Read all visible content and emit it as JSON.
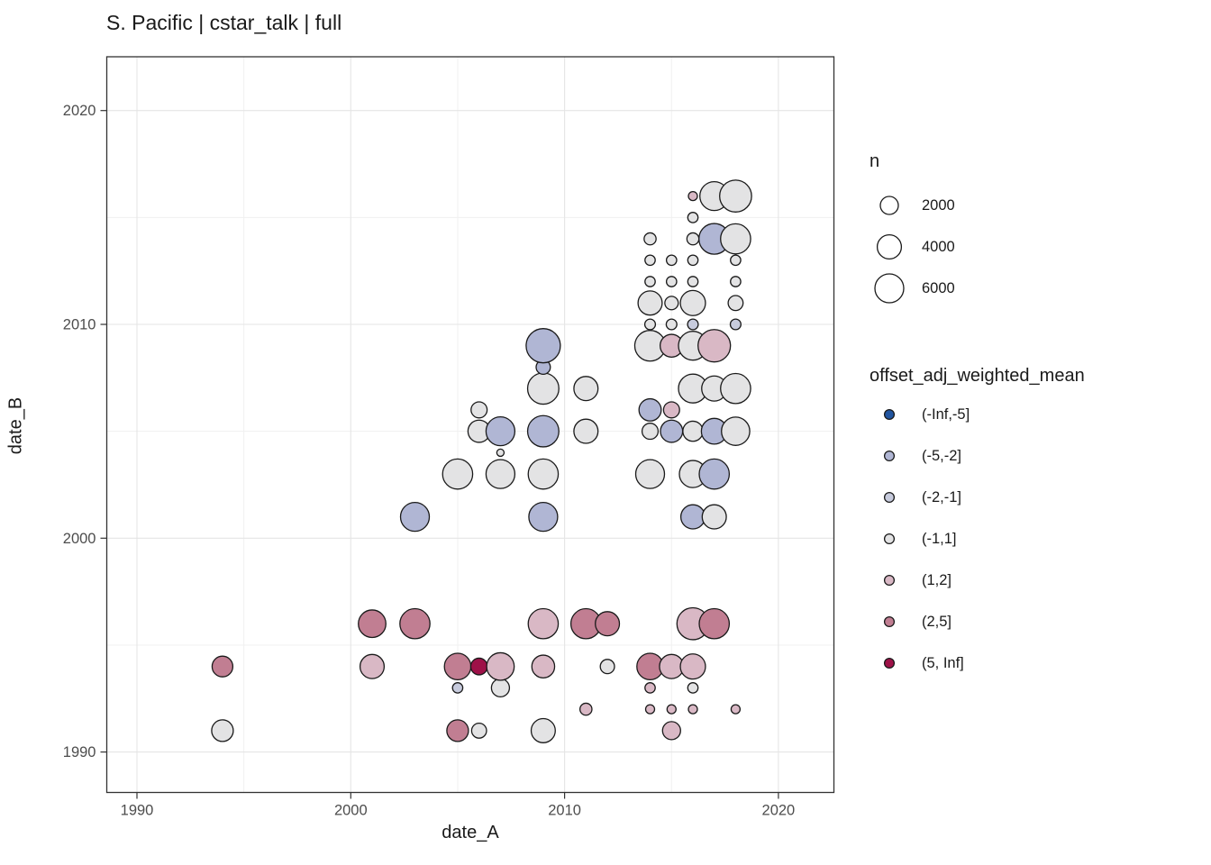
{
  "title": "S. Pacific | cstar_talk | full",
  "chart_data": {
    "type": "scatter",
    "title": "S. Pacific | cstar_talk | full",
    "xlabel": "date_A",
    "ylabel": "date_B",
    "xlim": [
      1988.6,
      2022.6
    ],
    "ylim": [
      1988.1,
      2022.6
    ],
    "x_ticks": [
      1990,
      2000,
      2010,
      2020
    ],
    "y_ticks": [
      1990,
      2000,
      2010,
      2020
    ],
    "x_minor_ticks": [
      1995,
      2005,
      2015
    ],
    "y_minor_ticks": [
      1995,
      2005,
      2015
    ],
    "grid": true,
    "legend_position": "right",
    "panel_border_color": "#333333",
    "grid_color_major": "#e5e5e5",
    "grid_color_minor": "#f0f0f0",
    "tick_label_color": "#4d4d4d",
    "bubble_stroke_color": "#1a1a1a",
    "size_legend": {
      "title": "n",
      "values": [
        2000,
        4000,
        6000
      ]
    },
    "color_legend": {
      "title": "offset_adj_weighted_mean",
      "categories": [
        "(-Inf,-5]",
        "(-5,-2]",
        "(-2,-1]",
        "(-1,1]",
        "(1,2]",
        "(2,5]",
        "(5, Inf]"
      ],
      "colors": [
        "#2155a0",
        "#b0b6d4",
        "#c7cbdd",
        "#e3e3e4",
        "#d9b8c5",
        "#c17e92",
        "#9e1148"
      ]
    },
    "points": [
      {
        "date_A": 1994,
        "date_B": 1991,
        "n": 3100,
        "offset_bin": "(-1,1]"
      },
      {
        "date_A": 1994,
        "date_B": 1994,
        "n": 2800,
        "offset_bin": "(2,5]"
      },
      {
        "date_A": 2001,
        "date_B": 1994,
        "n": 4000,
        "offset_bin": "(1,2]"
      },
      {
        "date_A": 2001,
        "date_B": 1996,
        "n": 5400,
        "offset_bin": "(2,5]"
      },
      {
        "date_A": 2003,
        "date_B": 1996,
        "n": 6600,
        "offset_bin": "(2,5]"
      },
      {
        "date_A": 2003,
        "date_B": 2001,
        "n": 6000,
        "offset_bin": "(-5,-2]"
      },
      {
        "date_A": 2005,
        "date_B": 1991,
        "n": 3100,
        "offset_bin": "(2,5]"
      },
      {
        "date_A": 2005,
        "date_B": 1993,
        "n": 450,
        "offset_bin": "(-2,-1]"
      },
      {
        "date_A": 2005,
        "date_B": 1994,
        "n": 4950,
        "offset_bin": "(2,5]"
      },
      {
        "date_A": 2005,
        "date_B": 2003,
        "n": 6600,
        "offset_bin": "(-1,1]"
      },
      {
        "date_A": 2006,
        "date_B": 1991,
        "n": 1250,
        "offset_bin": "(-1,1]"
      },
      {
        "date_A": 2006,
        "date_B": 1994,
        "n": 1650,
        "offset_bin": "(5, Inf]"
      },
      {
        "date_A": 2006,
        "date_B": 2005,
        "n": 3300,
        "offset_bin": "(-1,1]"
      },
      {
        "date_A": 2006,
        "date_B": 2006,
        "n": 1500,
        "offset_bin": "(-1,1]"
      },
      {
        "date_A": 2007,
        "date_B": 1993,
        "n": 2000,
        "offset_bin": "(-1,1]"
      },
      {
        "date_A": 2007,
        "date_B": 1994,
        "n": 5400,
        "offset_bin": "(1,2]"
      },
      {
        "date_A": 2007,
        "date_B": 2003,
        "n": 6000,
        "offset_bin": "(-1,1]"
      },
      {
        "date_A": 2007,
        "date_B": 2004,
        "n": 150,
        "offset_bin": "(-1,1]"
      },
      {
        "date_A": 2007,
        "date_B": 2005,
        "n": 6000,
        "offset_bin": "(-5,-2]"
      },
      {
        "date_A": 2009,
        "date_B": 1991,
        "n": 4000,
        "offset_bin": "(-1,1]"
      },
      {
        "date_A": 2009,
        "date_B": 1994,
        "n": 3500,
        "offset_bin": "(1,2]"
      },
      {
        "date_A": 2009,
        "date_B": 1996,
        "n": 6600,
        "offset_bin": "(1,2]"
      },
      {
        "date_A": 2009,
        "date_B": 2001,
        "n": 6000,
        "offset_bin": "(-5,-2]"
      },
      {
        "date_A": 2009,
        "date_B": 2003,
        "n": 6600,
        "offset_bin": "(-1,1]"
      },
      {
        "date_A": 2009,
        "date_B": 2005,
        "n": 7200,
        "offset_bin": "(-5,-2]"
      },
      {
        "date_A": 2009,
        "date_B": 2007,
        "n": 7200,
        "offset_bin": "(-1,1]"
      },
      {
        "date_A": 2009,
        "date_B": 2008,
        "n": 1100,
        "offset_bin": "(-5,-2]"
      },
      {
        "date_A": 2009,
        "date_B": 2009,
        "n": 8800,
        "offset_bin": "(-5,-2]"
      },
      {
        "date_A": 2011,
        "date_B": 1992,
        "n": 700,
        "offset_bin": "(1,2]"
      },
      {
        "date_A": 2011,
        "date_B": 1996,
        "n": 6600,
        "offset_bin": "(2,5]"
      },
      {
        "date_A": 2011,
        "date_B": 2005,
        "n": 4000,
        "offset_bin": "(-1,1]"
      },
      {
        "date_A": 2011,
        "date_B": 2007,
        "n": 4000,
        "offset_bin": "(-1,1]"
      },
      {
        "date_A": 2012,
        "date_B": 1994,
        "n": 1100,
        "offset_bin": "(-1,1]"
      },
      {
        "date_A": 2012,
        "date_B": 1996,
        "n": 4000,
        "offset_bin": "(2,5]"
      },
      {
        "date_A": 2014,
        "date_B": 1992,
        "n": 300,
        "offset_bin": "(1,2]"
      },
      {
        "date_A": 2014,
        "date_B": 1993,
        "n": 450,
        "offset_bin": "(1,2]"
      },
      {
        "date_A": 2014,
        "date_B": 1994,
        "n": 4950,
        "offset_bin": "(2,5]"
      },
      {
        "date_A": 2014,
        "date_B": 2003,
        "n": 6000,
        "offset_bin": "(-1,1]"
      },
      {
        "date_A": 2014,
        "date_B": 2005,
        "n": 1500,
        "offset_bin": "(-1,1]"
      },
      {
        "date_A": 2014,
        "date_B": 2006,
        "n": 3300,
        "offset_bin": "(-5,-2]"
      },
      {
        "date_A": 2014,
        "date_B": 2009,
        "n": 6900,
        "offset_bin": "(-1,1]"
      },
      {
        "date_A": 2014,
        "date_B": 2010,
        "n": 500,
        "offset_bin": "(-1,1]"
      },
      {
        "date_A": 2014,
        "date_B": 2011,
        "n": 4000,
        "offset_bin": "(-1,1]"
      },
      {
        "date_A": 2014,
        "date_B": 2012,
        "n": 450,
        "offset_bin": "(-1,1]"
      },
      {
        "date_A": 2014,
        "date_B": 2013,
        "n": 450,
        "offset_bin": "(-1,1]"
      },
      {
        "date_A": 2014,
        "date_B": 2014,
        "n": 700,
        "offset_bin": "(-1,1]"
      },
      {
        "date_A": 2015,
        "date_B": 1991,
        "n": 2000,
        "offset_bin": "(1,2]"
      },
      {
        "date_A": 2015,
        "date_B": 1992,
        "n": 300,
        "offset_bin": "(1,2]"
      },
      {
        "date_A": 2015,
        "date_B": 1994,
        "n": 4000,
        "offset_bin": "(1,2]"
      },
      {
        "date_A": 2015,
        "date_B": 2005,
        "n": 3300,
        "offset_bin": "(-5,-2]"
      },
      {
        "date_A": 2015,
        "date_B": 2006,
        "n": 1500,
        "offset_bin": "(1,2]"
      },
      {
        "date_A": 2015,
        "date_B": 2009,
        "n": 3500,
        "offset_bin": "(1,2]"
      },
      {
        "date_A": 2015,
        "date_B": 2010,
        "n": 500,
        "offset_bin": "(-1,1]"
      },
      {
        "date_A": 2015,
        "date_B": 2011,
        "n": 950,
        "offset_bin": "(-1,1]"
      },
      {
        "date_A": 2015,
        "date_B": 2012,
        "n": 450,
        "offset_bin": "(-1,1]"
      },
      {
        "date_A": 2015,
        "date_B": 2013,
        "n": 450,
        "offset_bin": "(-1,1]"
      },
      {
        "date_A": 2016,
        "date_B": 1992,
        "n": 300,
        "offset_bin": "(1,2]"
      },
      {
        "date_A": 2016,
        "date_B": 1993,
        "n": 450,
        "offset_bin": "(-1,1]"
      },
      {
        "date_A": 2016,
        "date_B": 1994,
        "n": 4400,
        "offset_bin": "(1,2]"
      },
      {
        "date_A": 2016,
        "date_B": 1996,
        "n": 7550,
        "offset_bin": "(1,2]"
      },
      {
        "date_A": 2016,
        "date_B": 2001,
        "n": 4000,
        "offset_bin": "(-5,-2]"
      },
      {
        "date_A": 2016,
        "date_B": 2003,
        "n": 5200,
        "offset_bin": "(-1,1]"
      },
      {
        "date_A": 2016,
        "date_B": 2005,
        "n": 2600,
        "offset_bin": "(-1,1]"
      },
      {
        "date_A": 2016,
        "date_B": 2007,
        "n": 6000,
        "offset_bin": "(-1,1]"
      },
      {
        "date_A": 2016,
        "date_B": 2009,
        "n": 6000,
        "offset_bin": "(-1,1]"
      },
      {
        "date_A": 2016,
        "date_B": 2010,
        "n": 500,
        "offset_bin": "(-2,-1]"
      },
      {
        "date_A": 2016,
        "date_B": 2011,
        "n": 4400,
        "offset_bin": "(-1,1]"
      },
      {
        "date_A": 2016,
        "date_B": 2012,
        "n": 450,
        "offset_bin": "(-1,1]"
      },
      {
        "date_A": 2016,
        "date_B": 2013,
        "n": 450,
        "offset_bin": "(-1,1]"
      },
      {
        "date_A": 2016,
        "date_B": 2014,
        "n": 700,
        "offset_bin": "(-1,1]"
      },
      {
        "date_A": 2016,
        "date_B": 2015,
        "n": 450,
        "offset_bin": "(-1,1]"
      },
      {
        "date_A": 2016,
        "date_B": 2016,
        "n": 300,
        "offset_bin": "(1,2]"
      },
      {
        "date_A": 2017,
        "date_B": 1996,
        "n": 6600,
        "offset_bin": "(2,5]"
      },
      {
        "date_A": 2017,
        "date_B": 2001,
        "n": 4000,
        "offset_bin": "(-1,1]"
      },
      {
        "date_A": 2017,
        "date_B": 2003,
        "n": 6600,
        "offset_bin": "(-5,-2]"
      },
      {
        "date_A": 2017,
        "date_B": 2005,
        "n": 4650,
        "offset_bin": "(-5,-2]"
      },
      {
        "date_A": 2017,
        "date_B": 2007,
        "n": 4400,
        "offset_bin": "(-1,1]"
      },
      {
        "date_A": 2017,
        "date_B": 2009,
        "n": 7800,
        "offset_bin": "(1,2]"
      },
      {
        "date_A": 2017,
        "date_B": 2014,
        "n": 6900,
        "offset_bin": "(-5,-2]"
      },
      {
        "date_A": 2017,
        "date_B": 2016,
        "n": 6000,
        "offset_bin": "(-1,1]"
      },
      {
        "date_A": 2018,
        "date_B": 1992,
        "n": 300,
        "offset_bin": "(1,2]"
      },
      {
        "date_A": 2018,
        "date_B": 2005,
        "n": 5750,
        "offset_bin": "(-1,1]"
      },
      {
        "date_A": 2018,
        "date_B": 2007,
        "n": 6600,
        "offset_bin": "(-1,1]"
      },
      {
        "date_A": 2018,
        "date_B": 2010,
        "n": 500,
        "offset_bin": "(-2,-1]"
      },
      {
        "date_A": 2018,
        "date_B": 2011,
        "n": 1250,
        "offset_bin": "(-1,1]"
      },
      {
        "date_A": 2018,
        "date_B": 2012,
        "n": 450,
        "offset_bin": "(-1,1]"
      },
      {
        "date_A": 2018,
        "date_B": 2013,
        "n": 450,
        "offset_bin": "(-1,1]"
      },
      {
        "date_A": 2018,
        "date_B": 2014,
        "n": 6600,
        "offset_bin": "(-1,1]"
      },
      {
        "date_A": 2018,
        "date_B": 2016,
        "n": 7550,
        "offset_bin": "(-1,1]"
      }
    ]
  }
}
